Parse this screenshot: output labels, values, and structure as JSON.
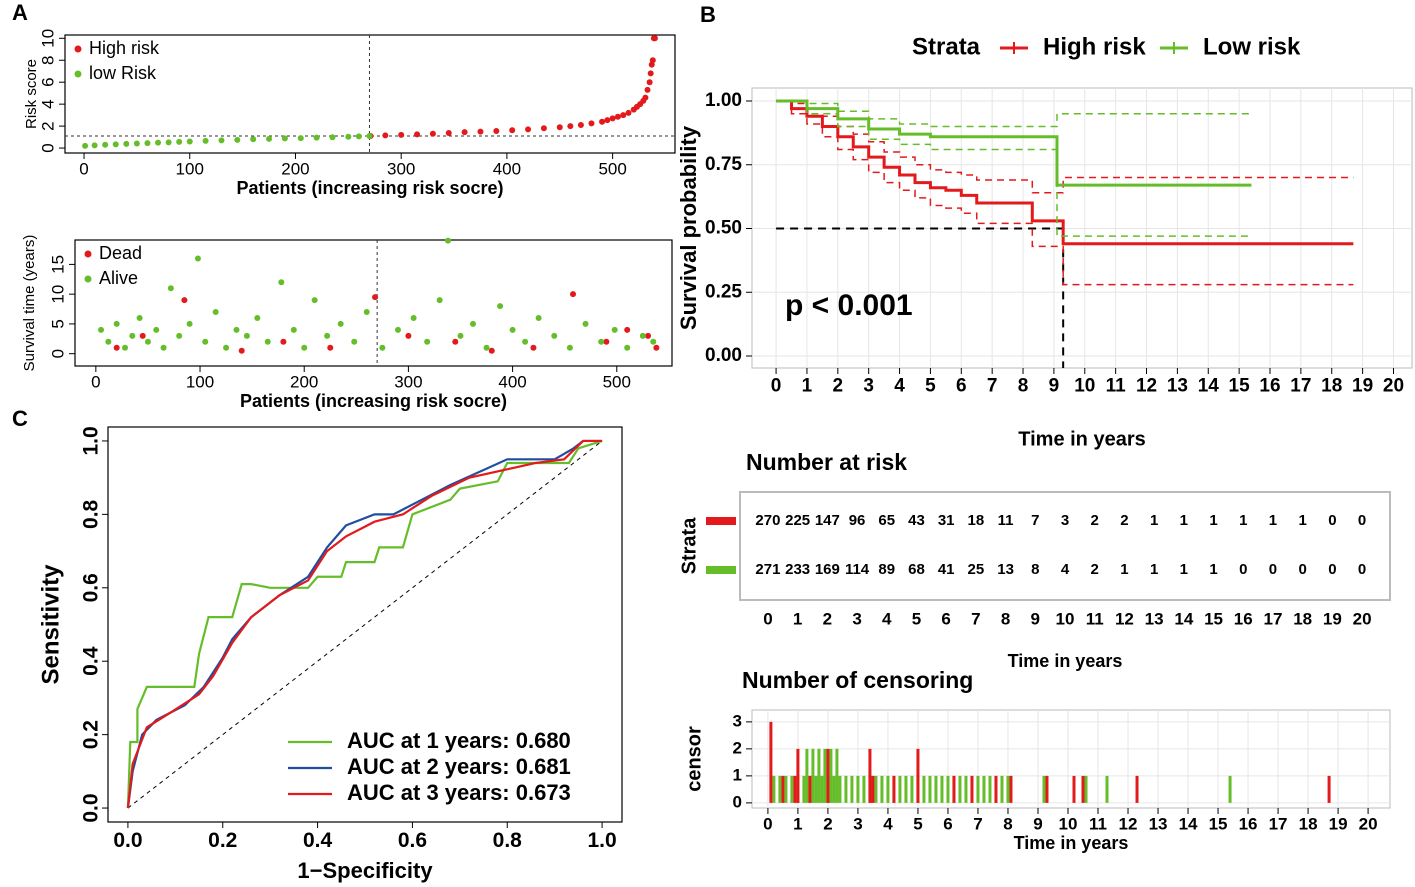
{
  "chart_data": [
    {
      "type": "scatter",
      "panel": "A",
      "xlabel": "Patients (increasing risk socre)",
      "ylabel": "Risk score",
      "xlim": [
        -18,
        559
      ],
      "ylim": [
        -0.45,
        10.3
      ],
      "xticks": [
        0,
        100,
        200,
        300,
        400,
        500
      ],
      "yticks": [
        0,
        2,
        4,
        6,
        8,
        10
      ],
      "cutoff_x": 270,
      "cutoff_y": 1.1,
      "legend": "top-left",
      "grid": false,
      "series": [
        {
          "name": "High risk",
          "color": "#e31a1c",
          "x": [
            271,
            285,
            300,
            315,
            330,
            345,
            360,
            375,
            390,
            405,
            420,
            435,
            450,
            460,
            470,
            480,
            490,
            495,
            500,
            505,
            510,
            515,
            520,
            523,
            526,
            529,
            531,
            533,
            535,
            536,
            537,
            538,
            539,
            540
          ],
          "values": [
            1.1,
            1.15,
            1.2,
            1.25,
            1.3,
            1.37,
            1.45,
            1.5,
            1.55,
            1.62,
            1.7,
            1.8,
            1.9,
            2.0,
            2.1,
            2.25,
            2.4,
            2.55,
            2.7,
            2.85,
            3.0,
            3.2,
            3.5,
            3.75,
            4.0,
            4.3,
            4.6,
            5.3,
            6.0,
            6.8,
            7.6,
            8.0,
            10.0,
            10.0
          ]
        },
        {
          "name": "low Risk",
          "color": "#66bd2a",
          "x": [
            1,
            10,
            20,
            30,
            40,
            50,
            60,
            70,
            80,
            90,
            100,
            115,
            130,
            145,
            160,
            175,
            190,
            205,
            220,
            235,
            250,
            260,
            270
          ],
          "values": [
            0.2,
            0.25,
            0.3,
            0.34,
            0.38,
            0.42,
            0.45,
            0.49,
            0.52,
            0.56,
            0.6,
            0.65,
            0.7,
            0.75,
            0.8,
            0.84,
            0.88,
            0.91,
            0.95,
            0.99,
            1.03,
            1.06,
            1.1
          ]
        }
      ]
    },
    {
      "type": "scatter",
      "xlabel": "Patients (increasing risk socre)",
      "ylabel": "Survival time (years)",
      "xlim": [
        -20,
        553
      ],
      "ylim": [
        -2.07,
        19.1
      ],
      "xticks": [
        0,
        100,
        200,
        300,
        400,
        500
      ],
      "yticks": [
        0,
        5,
        10,
        15
      ],
      "cutoff_x": 270,
      "legend": "top-left",
      "grid": false,
      "series": [
        {
          "name": "Dead",
          "color": "#e31a1c",
          "x": [
            20,
            45,
            85,
            140,
            180,
            225,
            268,
            300,
            345,
            380,
            420,
            458,
            490,
            510,
            530,
            538
          ],
          "values": [
            1,
            3,
            9,
            0.5,
            2,
            1,
            9.5,
            3,
            2,
            0.5,
            1,
            10,
            2,
            4,
            3,
            1
          ]
        },
        {
          "name": "Alive",
          "color": "#66bd2a",
          "x": [
            5,
            12,
            20,
            28,
            35,
            42,
            50,
            58,
            65,
            72,
            80,
            90,
            98,
            105,
            115,
            125,
            135,
            145,
            155,
            165,
            178,
            190,
            200,
            210,
            222,
            235,
            248,
            260,
            275,
            290,
            305,
            318,
            330,
            338,
            350,
            362,
            375,
            388,
            400,
            412,
            425,
            440,
            455,
            470,
            485,
            498,
            510,
            525,
            535
          ],
          "values": [
            4,
            2,
            5,
            1,
            3,
            6,
            2,
            4,
            1,
            11,
            3,
            5,
            16,
            2,
            7,
            1,
            4,
            3,
            6,
            2,
            12,
            4,
            1,
            9,
            3,
            5,
            2,
            7,
            1,
            4,
            6,
            2,
            9,
            19,
            3,
            5,
            1,
            8,
            4,
            2,
            6,
            3,
            1,
            5,
            2,
            4,
            1,
            3,
            2
          ]
        }
      ]
    },
    {
      "type": "line",
      "step": true,
      "panel": "B",
      "xlabel": "Time in years",
      "ylabel": "Survival probability",
      "annotation": "p < 0.001",
      "legend_title": "Strata",
      "legend": "top",
      "grid": true,
      "xlim": [
        -0.78,
        20.6
      ],
      "ylim": [
        -0.047,
        1.051
      ],
      "xticks": [
        0,
        1,
        2,
        3,
        4,
        5,
        6,
        7,
        8,
        9,
        10,
        11,
        12,
        13,
        14,
        15,
        16,
        17,
        18,
        19,
        20
      ],
      "yticks": [
        {
          "value": 0,
          "label": "0.00"
        },
        {
          "value": 0.25,
          "label": "0.25"
        },
        {
          "value": 0.5,
          "label": "0.50"
        },
        {
          "value": 0.75,
          "label": "0.75"
        },
        {
          "value": 1,
          "label": "1.00"
        }
      ],
      "median_line": [
        9.3,
        0.5
      ],
      "series": [
        {
          "name": "High risk",
          "color": "#e31a1c",
          "x": [
            0,
            0.5,
            1,
            1.5,
            2,
            2.5,
            3,
            3.5,
            4,
            4.5,
            5,
            5.5,
            6,
            6.5,
            8.3,
            9.3,
            18.7
          ],
          "values": [
            1,
            0.97,
            0.94,
            0.9,
            0.86,
            0.82,
            0.78,
            0.74,
            0.71,
            0.68,
            0.66,
            0.65,
            0.63,
            0.6,
            0.53,
            0.44,
            0.44
          ],
          "lower": [
            1,
            0.95,
            0.91,
            0.86,
            0.81,
            0.77,
            0.72,
            0.68,
            0.65,
            0.62,
            0.59,
            0.58,
            0.56,
            0.52,
            0.43,
            0.28,
            0.28
          ],
          "upper": [
            1,
            0.99,
            0.97,
            0.94,
            0.9,
            0.87,
            0.84,
            0.8,
            0.78,
            0.75,
            0.73,
            0.72,
            0.71,
            0.69,
            0.64,
            0.7,
            0.7
          ]
        },
        {
          "name": "Low risk",
          "color": "#66bd2a",
          "x": [
            0,
            1,
            2,
            3,
            4,
            5,
            9.1,
            15.4
          ],
          "values": [
            1,
            0.97,
            0.93,
            0.89,
            0.87,
            0.86,
            0.67,
            0.67
          ],
          "lower": [
            1,
            0.95,
            0.9,
            0.85,
            0.83,
            0.81,
            0.47,
            0.47
          ],
          "upper": [
            1,
            0.99,
            0.96,
            0.93,
            0.91,
            0.9,
            0.95,
            0.95
          ]
        }
      ]
    },
    {
      "type": "table",
      "title": "Number at risk",
      "ylabel": "Strata",
      "xlabel": "Time in years",
      "xlim": [
        -0.94,
        20.94
      ],
      "xticks": [
        0,
        1,
        2,
        3,
        4,
        5,
        6,
        7,
        8,
        9,
        10,
        11,
        12,
        13,
        14,
        15,
        16,
        17,
        18,
        19,
        20
      ],
      "series": [
        {
          "color": "#e31a1c",
          "values": [
            270,
            225,
            147,
            96,
            65,
            43,
            31,
            18,
            11,
            7,
            3,
            2,
            2,
            1,
            1,
            1,
            1,
            1,
            1,
            0,
            0
          ]
        },
        {
          "color": "#66bd2a",
          "values": [
            271,
            233,
            169,
            114,
            89,
            68,
            41,
            25,
            13,
            8,
            4,
            2,
            1,
            1,
            1,
            1,
            0,
            0,
            0,
            0,
            0
          ]
        }
      ]
    },
    {
      "type": "bar",
      "title": "Number of censoring",
      "ylabel": "censor",
      "xlabel": "Time in years",
      "grid": true,
      "xlim": [
        -0.53,
        20.73
      ],
      "ylim": [
        -0.19,
        3.44
      ],
      "xticks": [
        0,
        1,
        2,
        3,
        4,
        5,
        6,
        7,
        8,
        9,
        10,
        11,
        12,
        13,
        14,
        15,
        16,
        17,
        18,
        19,
        20
      ],
      "yticks": [
        0,
        1,
        2,
        3
      ],
      "series": [
        {
          "color": "#66bd2a",
          "x": [
            0.2,
            0.4,
            0.6,
            0.8,
            1.0,
            1.2,
            1.3,
            1.4,
            1.5,
            1.6,
            1.7,
            1.8,
            1.9,
            2.0,
            2.1,
            2.2,
            2.3,
            2.4,
            2.6,
            2.8,
            3.0,
            3.2,
            3.4,
            3.6,
            3.8,
            4.0,
            4.2,
            4.4,
            4.6,
            4.8,
            5.0,
            5.2,
            5.4,
            5.6,
            5.8,
            6.0,
            6.2,
            6.4,
            6.6,
            6.8,
            7.0,
            7.2,
            7.4,
            7.6,
            7.8,
            8.0,
            9.2,
            10.6,
            11.3,
            15.4
          ],
          "values": [
            1,
            1,
            1,
            1,
            1,
            1,
            2,
            1,
            2,
            1,
            2,
            1,
            2,
            1,
            2,
            1,
            2,
            1,
            1,
            1,
            1,
            1,
            1,
            1,
            1,
            1,
            1,
            1,
            1,
            1,
            1,
            1,
            1,
            1,
            1,
            1,
            1,
            1,
            1,
            1,
            1,
            1,
            1,
            1,
            1,
            1,
            1,
            1,
            1,
            1
          ]
        },
        {
          "color": "#e31a1c",
          "x": [
            0.1,
            0.5,
            0.9,
            1.0,
            1.4,
            2.0,
            3.4,
            3.5,
            4.2,
            5.0,
            6.2,
            6.8,
            7.6,
            8.1,
            9.3,
            10.2,
            10.5,
            12.3,
            18.7
          ],
          "values": [
            3,
            1,
            1,
            2,
            1,
            2,
            2,
            1,
            1,
            2,
            1,
            1,
            1,
            1,
            1,
            1,
            1,
            1,
            1
          ]
        }
      ]
    },
    {
      "type": "line",
      "panel": "C",
      "xlabel": "1−Specificity",
      "ylabel": "Sensitivity",
      "legend": "bottom-right",
      "grid": false,
      "xlim": [
        -0.042,
        1.042
      ],
      "ylim": [
        -0.038,
        1.038
      ],
      "xticks": [
        {
          "value": 0,
          "label": "0.0"
        },
        {
          "value": 0.2,
          "label": "0.2"
        },
        {
          "value": 0.4,
          "label": "0.4"
        },
        {
          "value": 0.6,
          "label": "0.6"
        },
        {
          "value": 0.8,
          "label": "0.8"
        },
        {
          "value": 1,
          "label": "1.0"
        }
      ],
      "yticks": [
        {
          "value": 0,
          "label": "0.0"
        },
        {
          "value": 0.2,
          "label": "0.2"
        },
        {
          "value": 0.4,
          "label": "0.4"
        },
        {
          "value": 0.6,
          "label": "0.6"
        },
        {
          "value": 0.8,
          "label": "0.8"
        },
        {
          "value": 1,
          "label": "1.0"
        }
      ],
      "series": [
        {
          "name": "AUC at 1 years: 0.680",
          "color": "#66bd2a",
          "x": [
            0,
            0.005,
            0.02,
            0.02,
            0.04,
            0.14,
            0.15,
            0.17,
            0.22,
            0.24,
            0.26,
            0.3,
            0.38,
            0.4,
            0.45,
            0.46,
            0.52,
            0.53,
            0.58,
            0.6,
            0.68,
            0.7,
            0.78,
            0.8,
            0.93,
            0.95,
            1
          ],
          "values": [
            0,
            0.18,
            0.18,
            0.27,
            0.33,
            0.33,
            0.42,
            0.52,
            0.52,
            0.61,
            0.61,
            0.6,
            0.6,
            0.63,
            0.63,
            0.67,
            0.67,
            0.71,
            0.71,
            0.8,
            0.84,
            0.87,
            0.89,
            0.94,
            0.94,
            0.98,
            1
          ]
        },
        {
          "name": "AUC at 2 years: 0.681",
          "color": "#1f4e9e",
          "x": [
            0,
            0.01,
            0.03,
            0.06,
            0.12,
            0.16,
            0.2,
            0.22,
            0.26,
            0.32,
            0.38,
            0.42,
            0.46,
            0.52,
            0.56,
            0.62,
            0.68,
            0.8,
            0.9,
            0.94,
            0.96,
            1
          ],
          "values": [
            0,
            0.1,
            0.2,
            0.24,
            0.28,
            0.33,
            0.41,
            0.46,
            0.52,
            0.58,
            0.63,
            0.71,
            0.77,
            0.8,
            0.8,
            0.84,
            0.88,
            0.95,
            0.95,
            0.98,
            1,
            1
          ]
        },
        {
          "name": "AUC at 3 years: 0.673",
          "color": "#e31a1c",
          "x": [
            0,
            0.01,
            0.04,
            0.09,
            0.15,
            0.18,
            0.22,
            0.26,
            0.32,
            0.38,
            0.42,
            0.46,
            0.52,
            0.58,
            0.64,
            0.72,
            0.86,
            0.92,
            0.96,
            1
          ],
          "values": [
            0,
            0.12,
            0.22,
            0.26,
            0.31,
            0.36,
            0.45,
            0.52,
            0.58,
            0.62,
            0.7,
            0.74,
            0.78,
            0.8,
            0.85,
            0.9,
            0.94,
            0.95,
            1,
            1
          ]
        }
      ]
    }
  ]
}
